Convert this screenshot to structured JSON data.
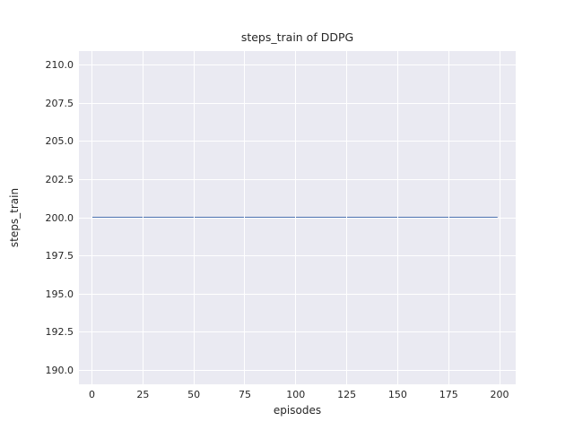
{
  "chart_data": {
    "type": "line",
    "title": "steps_train of DDPG",
    "xlabel": "episodes",
    "ylabel": "steps_train",
    "x_tick_values": [
      0,
      25,
      50,
      75,
      100,
      125,
      150,
      175,
      200
    ],
    "x_tick_labels": [
      "0",
      "25",
      "50",
      "75",
      "100",
      "125",
      "150",
      "175",
      "200"
    ],
    "y_tick_values": [
      190.0,
      192.5,
      195.0,
      197.5,
      200.0,
      202.5,
      205.0,
      207.5,
      210.0
    ],
    "y_tick_labels": [
      "190.0",
      "192.5",
      "195.0",
      "197.5",
      "200.0",
      "202.5",
      "205.0",
      "207.5",
      "210.0"
    ],
    "xlim": [
      -6.4,
      207.9
    ],
    "ylim": [
      189.1,
      210.9
    ],
    "grid": true,
    "legend": "none",
    "plot_background": "#eaeaf2",
    "grid_color": "#ffffff",
    "text_color": "#262626",
    "series": [
      {
        "name": "steps_train",
        "color": "#4c72b0",
        "line_width": 2,
        "x": [
          0,
          199
        ],
        "y": [
          200,
          200
        ]
      }
    ]
  }
}
